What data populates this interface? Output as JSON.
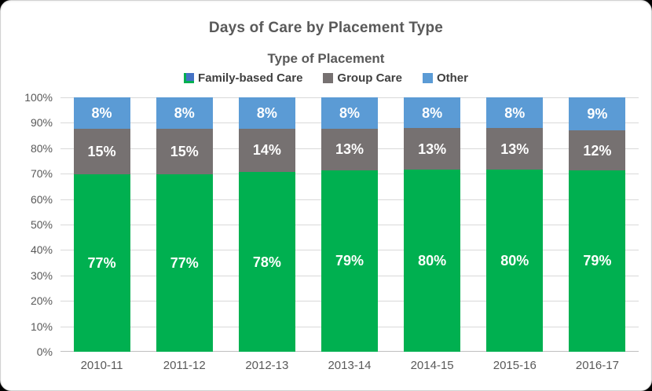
{
  "chart_data": {
    "type": "bar",
    "subtype": "stacked-100",
    "title": "Days of Care by Placement Type",
    "legend_title": "Type of Placement",
    "legend_position": "top",
    "grid": true,
    "categories": [
      "2010-11",
      "2011-12",
      "2012-13",
      "2013-14",
      "2014-15",
      "2015-16",
      "2016-17"
    ],
    "series": [
      {
        "name": "Family-based Care",
        "color": "#00B050",
        "values": [
          77,
          77,
          78,
          79,
          80,
          80,
          79
        ],
        "labels": [
          "77%",
          "77%",
          "78%",
          "79%",
          "80%",
          "80%",
          "79%"
        ]
      },
      {
        "name": "Group Care",
        "color": "#767171",
        "values": [
          15,
          15,
          14,
          13,
          13,
          13,
          12
        ],
        "labels": [
          "15%",
          "15%",
          "14%",
          "13%",
          "13%",
          "13%",
          "12%"
        ]
      },
      {
        "name": "Other",
        "color": "#5B9BD5",
        "values": [
          8,
          8,
          8,
          8,
          8,
          8,
          9
        ],
        "labels": [
          "8%",
          "8%",
          "8%",
          "8%",
          "8%",
          "8%",
          "9%"
        ]
      }
    ],
    "y_axis": {
      "min": 0,
      "max": 100,
      "step": 10,
      "ticks": [
        "0%",
        "10%",
        "20%",
        "30%",
        "40%",
        "50%",
        "60%",
        "70%",
        "80%",
        "90%",
        "100%"
      ]
    },
    "colors": {
      "title_text": "#595959",
      "axis_text": "#595959",
      "legend_text": "#404040",
      "gridline": "#D9D9D9",
      "axis_line": "#BFBFBF",
      "data_label_text": "#FFFFFF",
      "family_marker_inner": "#4472C4"
    }
  }
}
